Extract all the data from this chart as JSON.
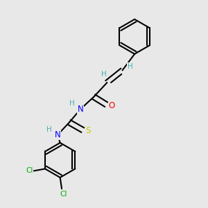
{
  "bg_color": "#e8e8e8",
  "bond_color": "#000000",
  "atom_colors": {
    "H": "#4aacac",
    "N": "#0000ff",
    "O": "#ff0000",
    "S": "#cccc00",
    "Cl": "#00aa00",
    "C": "#000000"
  }
}
